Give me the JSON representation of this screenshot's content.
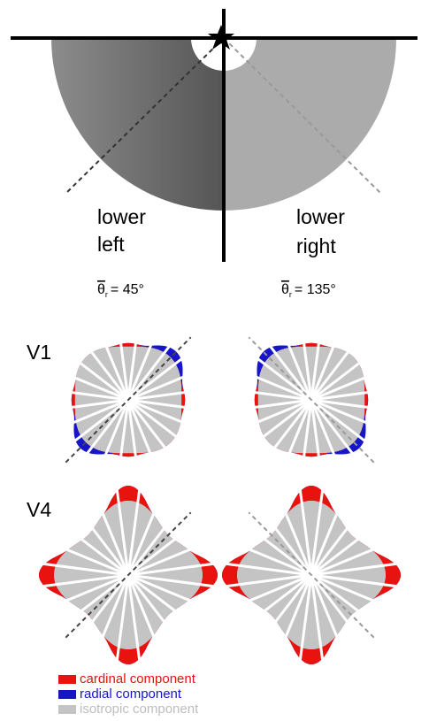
{
  "figure": {
    "quadrants": [
      {
        "label": [
          "lower",
          "left"
        ],
        "theta": {
          "symbol": "θ",
          "subscript": "r",
          "text": "= 45°"
        }
      },
      {
        "label": [
          "lower",
          "right"
        ],
        "theta": {
          "symbol": "θ",
          "subscript": "r",
          "text": "= 135°"
        }
      }
    ],
    "areas": [
      "V1",
      "V4"
    ],
    "legend": [
      "cardinal component",
      "radial component",
      "isotropic component"
    ]
  }
}
